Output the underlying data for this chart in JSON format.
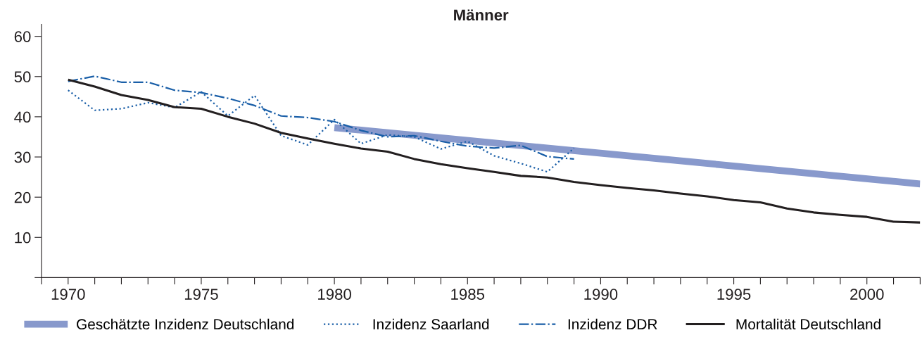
{
  "chart_data": {
    "type": "line",
    "title": "Männer",
    "x": [
      1970,
      1971,
      1972,
      1973,
      1974,
      1975,
      1976,
      1977,
      1978,
      1979,
      1980,
      1981,
      1982,
      1983,
      1984,
      1985,
      1986,
      1987,
      1988,
      1989,
      1990,
      1991,
      1992,
      1993,
      1994,
      1995,
      1996,
      1997,
      1998,
      1999,
      2000,
      2001,
      2002
    ],
    "series": [
      {
        "name": "Geschätzte Inzidenz Deutschland",
        "color": "#8899cc",
        "line_style": "solid",
        "x": [
          1980,
          2002
        ],
        "values": [
          37.3,
          23.3
        ]
      },
      {
        "name": "Inzidenz Saarland",
        "color": "#1a5fa8",
        "line_style": "dotted",
        "x": [
          1970,
          1971,
          1972,
          1973,
          1974,
          1975,
          1976,
          1977,
          1978,
          1979,
          1980,
          1981,
          1982,
          1983,
          1984,
          1985,
          1986,
          1987,
          1988,
          1989
        ],
        "values": [
          46.6,
          41.6,
          42.0,
          43.5,
          42.3,
          46.2,
          40.2,
          45.3,
          35.3,
          33.0,
          39.3,
          33.3,
          35.5,
          35.0,
          32.0,
          33.9,
          30.3,
          28.4,
          26.3,
          32.2
        ]
      },
      {
        "name": "Inzidenz DDR",
        "color": "#1a5fa8",
        "line_style": "dashdot",
        "x": [
          1970,
          1971,
          1972,
          1973,
          1974,
          1975,
          1976,
          1977,
          1978,
          1979,
          1980,
          1981,
          1982,
          1983,
          1984,
          1985,
          1986,
          1987,
          1988,
          1989
        ],
        "values": [
          48.8,
          50.1,
          48.6,
          48.6,
          46.6,
          46.0,
          44.6,
          42.8,
          40.2,
          39.8,
          38.8,
          36.6,
          35.0,
          35.3,
          33.9,
          32.7,
          32.2,
          32.9,
          30.1,
          29.5
        ]
      },
      {
        "name": "Mortalität Deutschland",
        "color": "#231f20",
        "line_style": "solid",
        "values": [
          49.2,
          47.5,
          45.4,
          44.2,
          42.4,
          42.0,
          40.0,
          38.3,
          36.0,
          34.6,
          33.3,
          32.1,
          31.3,
          29.5,
          28.2,
          27.2,
          26.3,
          25.3,
          24.9,
          23.8,
          23.0,
          22.3,
          21.7,
          20.9,
          20.2,
          19.3,
          18.7,
          17.2,
          16.2,
          15.6,
          15.1,
          13.9,
          13.7
        ]
      }
    ],
    "xlim": [
      1969,
      2002
    ],
    "xticks": [
      {
        "value": 1969,
        "label": null
      },
      1970,
      {
        "value": 1971,
        "label": null
      },
      {
        "value": 1972,
        "label": null
      },
      {
        "value": 1973,
        "label": null
      },
      {
        "value": 1974,
        "label": null
      },
      1975,
      {
        "value": 1976,
        "label": null
      },
      {
        "value": 1977,
        "label": null
      },
      {
        "value": 1978,
        "label": null
      },
      {
        "value": 1979,
        "label": null
      },
      1980,
      {
        "value": 1981,
        "label": null
      },
      {
        "value": 1982,
        "label": null
      },
      {
        "value": 1983,
        "label": null
      },
      {
        "value": 1984,
        "label": null
      },
      1985,
      {
        "value": 1986,
        "label": null
      },
      {
        "value": 1987,
        "label": null
      },
      {
        "value": 1988,
        "label": null
      },
      {
        "value": 1989,
        "label": null
      },
      1990,
      {
        "value": 1991,
        "label": null
      },
      {
        "value": 1992,
        "label": null
      },
      {
        "value": 1993,
        "label": null
      },
      {
        "value": 1994,
        "label": null
      },
      1995,
      {
        "value": 1996,
        "label": null
      },
      {
        "value": 1997,
        "label": null
      },
      {
        "value": 1998,
        "label": null
      },
      {
        "value": 1999,
        "label": null
      },
      2000,
      {
        "value": 2001,
        "label": null
      },
      {
        "value": 2002,
        "label": null
      }
    ],
    "ylim": [
      0,
      63
    ],
    "yticks": [
      {
        "value": 0,
        "label": null
      },
      10,
      20,
      30,
      40,
      50,
      60
    ],
    "grid": false,
    "legend": "bottom",
    "marker": "none"
  }
}
